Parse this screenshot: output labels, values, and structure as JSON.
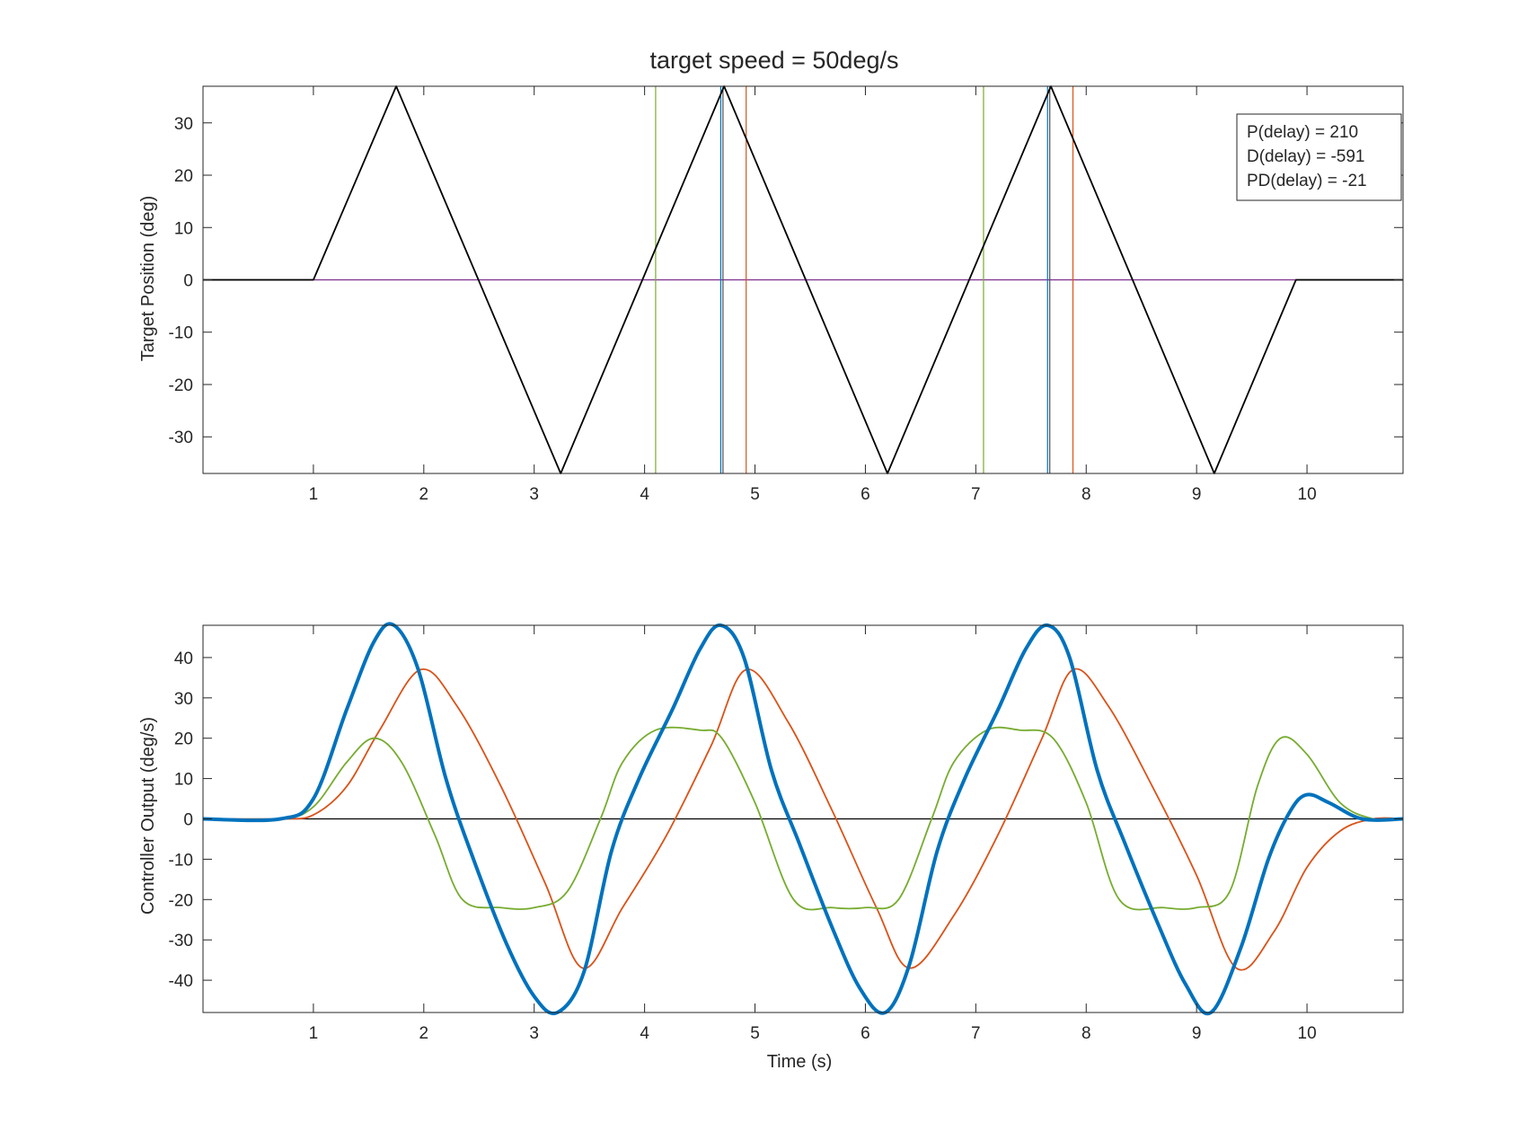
{
  "chart_data": [
    {
      "type": "line",
      "title": "target speed = 50deg/s",
      "xlabel": "",
      "ylabel": "Target Position (deg)",
      "xlim": [
        0,
        10.87
      ],
      "ylim": [
        -37,
        37
      ],
      "xticks": [
        1,
        2,
        3,
        4,
        5,
        6,
        7,
        8,
        9,
        10
      ],
      "xtick_labels": [
        "1",
        "2",
        "3",
        "4",
        "5",
        "6",
        "7",
        "8",
        "9",
        "10"
      ],
      "yticks": [
        30,
        20,
        10,
        0,
        -10,
        -20,
        -30
      ],
      "ytick_labels": [
        "30",
        "20",
        "10",
        "0",
        "-10",
        "-20",
        "-30"
      ],
      "grid": false,
      "series": [
        {
          "color": "#000000",
          "style": "triangle-wave",
          "x": [
            0,
            1.0,
            1.75,
            3.24,
            4.72,
            6.2,
            7.68,
            9.16,
            9.9,
            10.87
          ],
          "y": [
            0,
            0,
            37,
            -37,
            37,
            -37,
            37,
            -37,
            0,
            0
          ]
        }
      ],
      "baseline": {
        "y": 0,
        "color": "#7E2F8E"
      },
      "vertical_markers": [
        {
          "x": 4.1,
          "color": "#77AC30"
        },
        {
          "x": 4.69,
          "color": "#0072BD"
        },
        {
          "x": 4.71,
          "color": "#4d4d4d"
        },
        {
          "x": 4.92,
          "color": "#D95319"
        },
        {
          "x": 7.07,
          "color": "#77AC30"
        },
        {
          "x": 7.65,
          "color": "#0072BD"
        },
        {
          "x": 7.67,
          "color": "#4d4d4d"
        },
        {
          "x": 7.88,
          "color": "#D95319"
        }
      ],
      "legend": {
        "placement": "top-right",
        "entries": [
          "P(delay) = 210",
          "D(delay) = -591",
          "PD(delay) = -21"
        ]
      }
    },
    {
      "type": "line",
      "title": "",
      "xlabel": "Time (s)",
      "ylabel": "Controller Output (deg/s)",
      "xlim": [
        0,
        10.87
      ],
      "ylim": [
        -48,
        48
      ],
      "xticks": [
        1,
        2,
        3,
        4,
        5,
        6,
        7,
        8,
        9,
        10
      ],
      "xtick_labels": [
        "1",
        "2",
        "3",
        "4",
        "5",
        "6",
        "7",
        "8",
        "9",
        "10"
      ],
      "yticks": [
        40,
        30,
        20,
        10,
        0,
        -10,
        -20,
        -30,
        -40
      ],
      "ytick_labels": [
        "40",
        "30",
        "20",
        "10",
        "0",
        "-10",
        "-20",
        "-30",
        "-40"
      ],
      "grid": false,
      "baseline": {
        "y": 0,
        "color": "#000000"
      },
      "series": [
        {
          "color": "#D95319",
          "x": [
            0,
            0.7,
            1.0,
            1.3,
            1.6,
            1.97,
            2.3,
            2.7,
            3.1,
            3.44,
            3.8,
            4.2,
            4.6,
            4.92,
            5.3,
            5.7,
            6.1,
            6.4,
            6.8,
            7.2,
            7.6,
            7.88,
            8.2,
            8.6,
            9.0,
            9.36,
            9.7,
            10.0,
            10.3,
            10.6,
            10.87
          ],
          "y": [
            0,
            0,
            1,
            8,
            22,
            37,
            28,
            8,
            -16,
            -37,
            -22,
            -4,
            18,
            37,
            24,
            2,
            -22,
            -37,
            -24,
            -4,
            20,
            37,
            28,
            8,
            -14,
            -37,
            -28,
            -12,
            -3,
            0,
            0
          ]
        },
        {
          "color": "#77AC30",
          "x": [
            0,
            0.7,
            1.0,
            1.3,
            1.55,
            1.8,
            2.1,
            2.35,
            2.7,
            3.0,
            3.3,
            3.6,
            3.8,
            4.1,
            4.5,
            4.7,
            5.0,
            5.35,
            5.7,
            6.0,
            6.3,
            6.6,
            6.8,
            7.1,
            7.4,
            7.7,
            8.0,
            8.3,
            8.7,
            9.0,
            9.3,
            9.55,
            9.76,
            10.0,
            10.3,
            10.6,
            10.87
          ],
          "y": [
            0,
            0,
            3,
            14,
            20,
            14,
            -4,
            -20,
            -22,
            -22,
            -18,
            0,
            14,
            22,
            22,
            20,
            4,
            -20,
            -22,
            -22,
            -20,
            0,
            14,
            22,
            22,
            20,
            4,
            -20,
            -22,
            -22,
            -18,
            8,
            20,
            16,
            4,
            0,
            0
          ]
        },
        {
          "color": "#0072BD",
          "bold": true,
          "x": [
            0,
            0.7,
            1.0,
            1.3,
            1.55,
            1.73,
            1.95,
            2.2,
            2.45,
            2.75,
            3.0,
            3.21,
            3.45,
            3.7,
            3.95,
            4.25,
            4.5,
            4.69,
            4.9,
            5.15,
            5.4,
            5.7,
            5.95,
            6.18,
            6.4,
            6.65,
            6.9,
            7.2,
            7.45,
            7.65,
            7.85,
            8.1,
            8.35,
            8.65,
            8.9,
            9.13,
            9.4,
            9.65,
            9.85,
            10.0,
            10.2,
            10.5,
            10.87
          ],
          "y": [
            0,
            0,
            5,
            27,
            44,
            48,
            37,
            10,
            -10,
            -31,
            -44,
            -48,
            -38,
            -8,
            10,
            27,
            42,
            48,
            40,
            12,
            -6,
            -27,
            -42,
            -48,
            -36,
            -8,
            10,
            27,
            42,
            48,
            40,
            12,
            -6,
            -26,
            -41,
            -48,
            -32,
            -10,
            2,
            6,
            4,
            0,
            0
          ]
        }
      ]
    }
  ]
}
